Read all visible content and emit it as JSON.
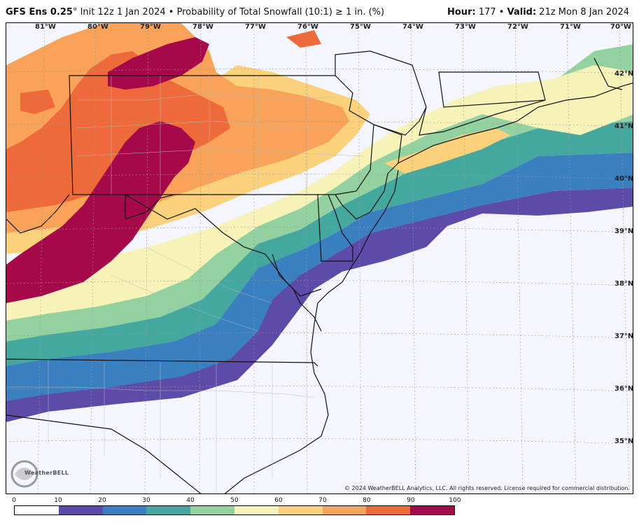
{
  "header": {
    "model": "GFS Ens 0.25",
    "degree_symbol": "°",
    "init": "Init 12z 1 Jan 2024",
    "separator": "•",
    "product": "Probability of Total Snowfall (10:1) ≥ 1 in. (%)",
    "hour_label": "Hour:",
    "hour_value": "177",
    "valid_label": "Valid:",
    "valid_value": "21z Mon 8 Jan 2024"
  },
  "longitudes": [
    "81°W",
    "80°W",
    "79°W",
    "78°W",
    "77°W",
    "76°W",
    "75°W",
    "74°W",
    "73°W",
    "72°W",
    "71°W",
    "70°W"
  ],
  "latitudes": [
    "42°N",
    "41°N",
    "40°N",
    "39°N",
    "38°N",
    "37°N",
    "36°N",
    "35°N"
  ],
  "legend": {
    "ticks": [
      "0",
      "10",
      "20",
      "30",
      "40",
      "50",
      "60",
      "70",
      "80",
      "90",
      "100"
    ],
    "colors": [
      "#ffffff",
      "#5e4aa8",
      "#3a7fc0",
      "#45a8a0",
      "#93d2a0",
      "#f7f3b8",
      "#fbd17c",
      "#f8a25a",
      "#ee6a3a",
      "#a5094a"
    ]
  },
  "copyright": "© 2024 WeatherBELL Analytics, LLC. All rights reserved. License required for commercial distribution.",
  "logo": {
    "name": "WeatherBELL"
  }
}
